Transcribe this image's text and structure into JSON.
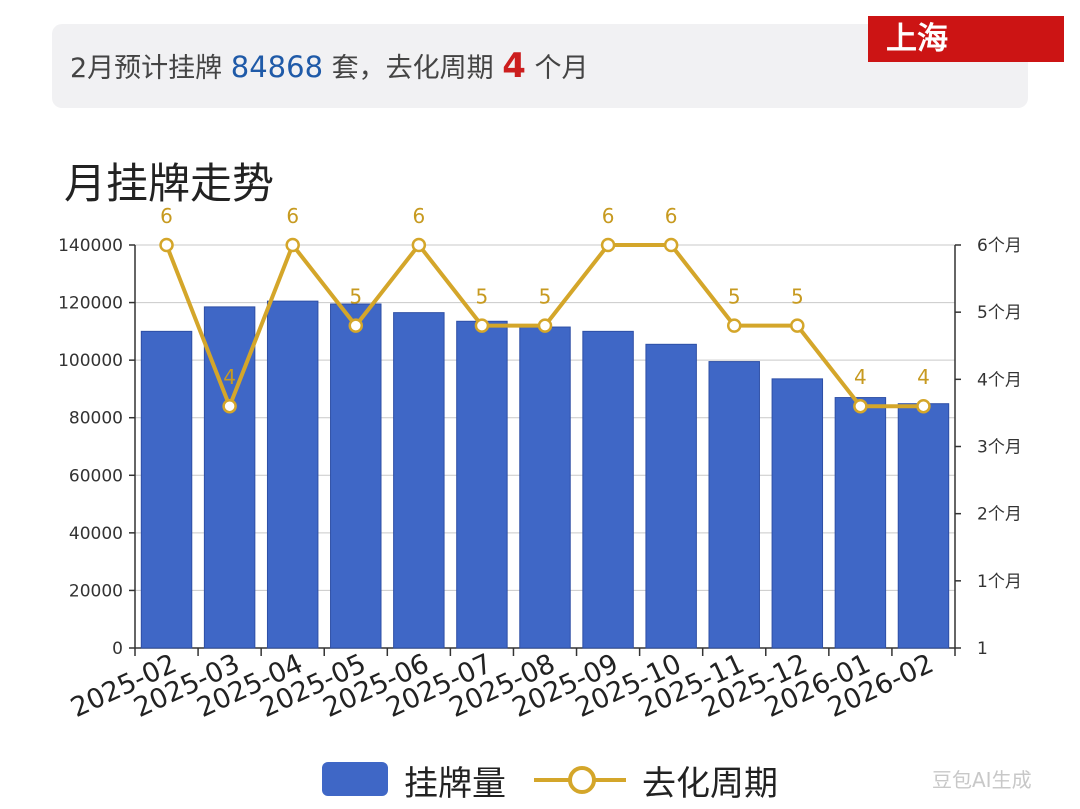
{
  "summary": {
    "prefix": "2月预计挂牌",
    "count": "84868",
    "mid": "套，去化周期",
    "cycle": "4",
    "suffix": "个月"
  },
  "city_badge": "上海",
  "watermark": "豆包AI生成",
  "colors": {
    "bar": "#3f67c6",
    "line": "#d4a62a",
    "badge": "#cc1414",
    "count": "#1f5aa8",
    "cycle": "#cc1e1e"
  },
  "chart_data": {
    "type": "bar",
    "title": "月挂牌走势",
    "categories": [
      "2025-02",
      "2025-03",
      "2025-04",
      "2025-05",
      "2025-06",
      "2025-07",
      "2025-08",
      "2025-09",
      "2025-10",
      "2025-11",
      "2025-12",
      "2026-01",
      "2026-02"
    ],
    "series": [
      {
        "name": "挂牌量",
        "type": "bar",
        "axis": "left",
        "values": [
          110000,
          118500,
          120500,
          119500,
          116500,
          113500,
          111500,
          110000,
          105500,
          99500,
          93500,
          87000,
          84868
        ]
      },
      {
        "name": "去化周期",
        "type": "line",
        "axis": "right",
        "values": [
          6,
          4,
          6,
          5,
          6,
          5,
          5,
          6,
          6,
          5,
          5,
          4,
          4
        ],
        "labels": [
          "6",
          "4",
          "6",
          "5",
          "6",
          "5",
          "5",
          "6",
          "6",
          "5",
          "5",
          "4",
          "4"
        ]
      }
    ],
    "y_left": {
      "ylim": [
        0,
        140000
      ],
      "ticks": [
        "0",
        "20000",
        "40000",
        "60000",
        "80000",
        "100000",
        "120000",
        "140000"
      ]
    },
    "y_right": {
      "ylim": [
        1,
        6
      ],
      "ticks": [
        "1",
        "1个月",
        "2个月",
        "3个月",
        "4个月",
        "5个月",
        "6个月"
      ]
    },
    "grid": true,
    "legend": "bottom"
  }
}
